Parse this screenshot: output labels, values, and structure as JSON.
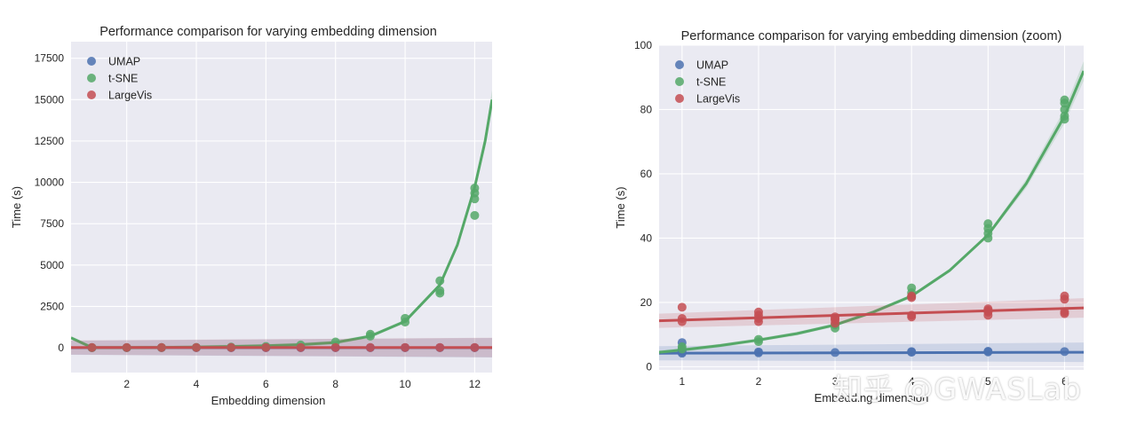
{
  "chart_data": [
    {
      "type": "scatter",
      "title": "Performance comparison for varying embedding dimension",
      "xlabel": "Embedding dimension",
      "ylabel": "Time (s)",
      "xlim": [
        0.4,
        12.5
      ],
      "ylim": [
        -1500,
        18500
      ],
      "xticks": [
        2,
        4,
        6,
        8,
        10,
        12
      ],
      "yticks": [
        0,
        2500,
        5000,
        7500,
        10000,
        12500,
        15000,
        17500
      ],
      "legend_position": "top-left",
      "series": [
        {
          "name": "UMAP",
          "color": "#4c72b0",
          "points": [
            [
              1,
              4
            ],
            [
              2,
              4
            ],
            [
              3,
              4
            ],
            [
              4,
              4
            ],
            [
              5,
              4
            ],
            [
              6,
              4
            ],
            [
              7,
              4
            ],
            [
              8,
              4
            ],
            [
              9,
              4
            ],
            [
              10,
              4
            ],
            [
              11,
              4
            ],
            [
              12,
              4
            ]
          ],
          "fit": [
            [
              0.4,
              4
            ],
            [
              12.5,
              4
            ]
          ]
        },
        {
          "name": "t-SNE",
          "color": "#55a868",
          "points": [
            [
              1,
              5
            ],
            [
              2,
              8
            ],
            [
              3,
              12
            ],
            [
              4,
              22
            ],
            [
              5,
              42
            ],
            [
              6,
              80
            ],
            [
              7,
              170
            ],
            [
              8,
              350
            ],
            [
              9,
              700
            ],
            [
              9,
              820
            ],
            [
              10,
              1550
            ],
            [
              10,
              1780
            ],
            [
              11,
              3300
            ],
            [
              11,
              3450
            ],
            [
              11,
              4050
            ],
            [
              12,
              8000
            ],
            [
              12,
              9000
            ],
            [
              12,
              9350
            ],
            [
              12,
              9650
            ]
          ],
          "fit": [
            [
              0.4,
              600
            ],
            [
              1,
              10
            ],
            [
              2,
              15
            ],
            [
              3,
              25
            ],
            [
              4,
              45
            ],
            [
              5,
              75
            ],
            [
              6,
              120
            ],
            [
              7,
              190
            ],
            [
              8,
              320
            ],
            [
              9,
              700
            ],
            [
              10,
              1600
            ],
            [
              11,
              3800
            ],
            [
              11.5,
              6200
            ],
            [
              12,
              9700
            ],
            [
              12.3,
              12500
            ],
            [
              12.5,
              15000
            ]
          ]
        },
        {
          "name": "LargeVis",
          "color": "#c44e52",
          "points": [
            [
              1,
              15
            ],
            [
              2,
              15
            ],
            [
              3,
              15
            ],
            [
              4,
              16
            ],
            [
              5,
              16
            ],
            [
              6,
              17
            ],
            [
              7,
              17
            ],
            [
              8,
              17
            ],
            [
              9,
              17
            ],
            [
              10,
              17
            ],
            [
              11,
              17
            ],
            [
              12,
              18
            ]
          ],
          "fit": [
            [
              0.4,
              14
            ],
            [
              12.5,
              19
            ]
          ]
        }
      ]
    },
    {
      "type": "scatter",
      "title": "Performance comparison for varying embedding dimension (zoom)",
      "xlabel": "Embedding dimension",
      "ylabel": "Time (s)",
      "xlim": [
        0.7,
        6.25
      ],
      "ylim": [
        -1,
        100
      ],
      "xticks": [
        1,
        2,
        3,
        4,
        5,
        6
      ],
      "yticks": [
        0,
        20,
        40,
        60,
        80,
        100
      ],
      "legend_position": "top-left",
      "series": [
        {
          "name": "UMAP",
          "color": "#4c72b0",
          "points": [
            [
              1,
              7.5
            ],
            [
              1,
              5
            ],
            [
              1,
              4.2
            ],
            [
              1,
              4.5
            ],
            [
              2,
              4.3
            ],
            [
              2,
              4.6
            ],
            [
              3,
              4.4
            ],
            [
              4,
              4.5
            ],
            [
              4,
              4.7
            ],
            [
              5,
              4.6
            ],
            [
              5,
              4.8
            ],
            [
              6,
              4.7
            ]
          ],
          "fit": [
            [
              0.7,
              4.2
            ],
            [
              6.25,
              4.5
            ]
          ]
        },
        {
          "name": "t-SNE",
          "color": "#55a868",
          "points": [
            [
              1,
              5.5
            ],
            [
              1,
              6.2
            ],
            [
              2,
              7.8
            ],
            [
              2,
              8.5
            ],
            [
              3,
              12
            ],
            [
              3,
              13
            ],
            [
              4,
              22
            ],
            [
              4,
              23
            ],
            [
              4,
              24.5
            ],
            [
              5,
              40
            ],
            [
              5,
              41.5
            ],
            [
              5,
              43
            ],
            [
              5,
              44.5
            ],
            [
              6,
              77
            ],
            [
              6,
              78
            ],
            [
              6,
              80
            ],
            [
              6,
              82
            ],
            [
              6,
              83
            ]
          ],
          "fit": [
            [
              0.7,
              4.5
            ],
            [
              1,
              5.2
            ],
            [
              1.5,
              6.6
            ],
            [
              2,
              8.3
            ],
            [
              2.5,
              10.3
            ],
            [
              3,
              13
            ],
            [
              3.5,
              17
            ],
            [
              4,
              22
            ],
            [
              4.5,
              30
            ],
            [
              5,
              41
            ],
            [
              5.5,
              57
            ],
            [
              6,
              78
            ],
            [
              6.25,
              92
            ]
          ]
        },
        {
          "name": "LargeVis",
          "color": "#c44e52",
          "points": [
            [
              1,
              14
            ],
            [
              1,
              15
            ],
            [
              1,
              18.5
            ],
            [
              2,
              14
            ],
            [
              2,
              15
            ],
            [
              2,
              16
            ],
            [
              2,
              17
            ],
            [
              3,
              13.5
            ],
            [
              3,
              14.5
            ],
            [
              3,
              15
            ],
            [
              3,
              15.5
            ],
            [
              4,
              15.5
            ],
            [
              4,
              16
            ],
            [
              4,
              21.5
            ],
            [
              4,
              22
            ],
            [
              5,
              16
            ],
            [
              5,
              17
            ],
            [
              5,
              17.5
            ],
            [
              5,
              18
            ],
            [
              6,
              16.5
            ],
            [
              6,
              17
            ],
            [
              6,
              21
            ],
            [
              6,
              22
            ]
          ],
          "fit": [
            [
              0.7,
              14.3
            ],
            [
              6.25,
              18.3
            ]
          ]
        }
      ]
    }
  ],
  "watermark": "知乎 @GWASLab"
}
